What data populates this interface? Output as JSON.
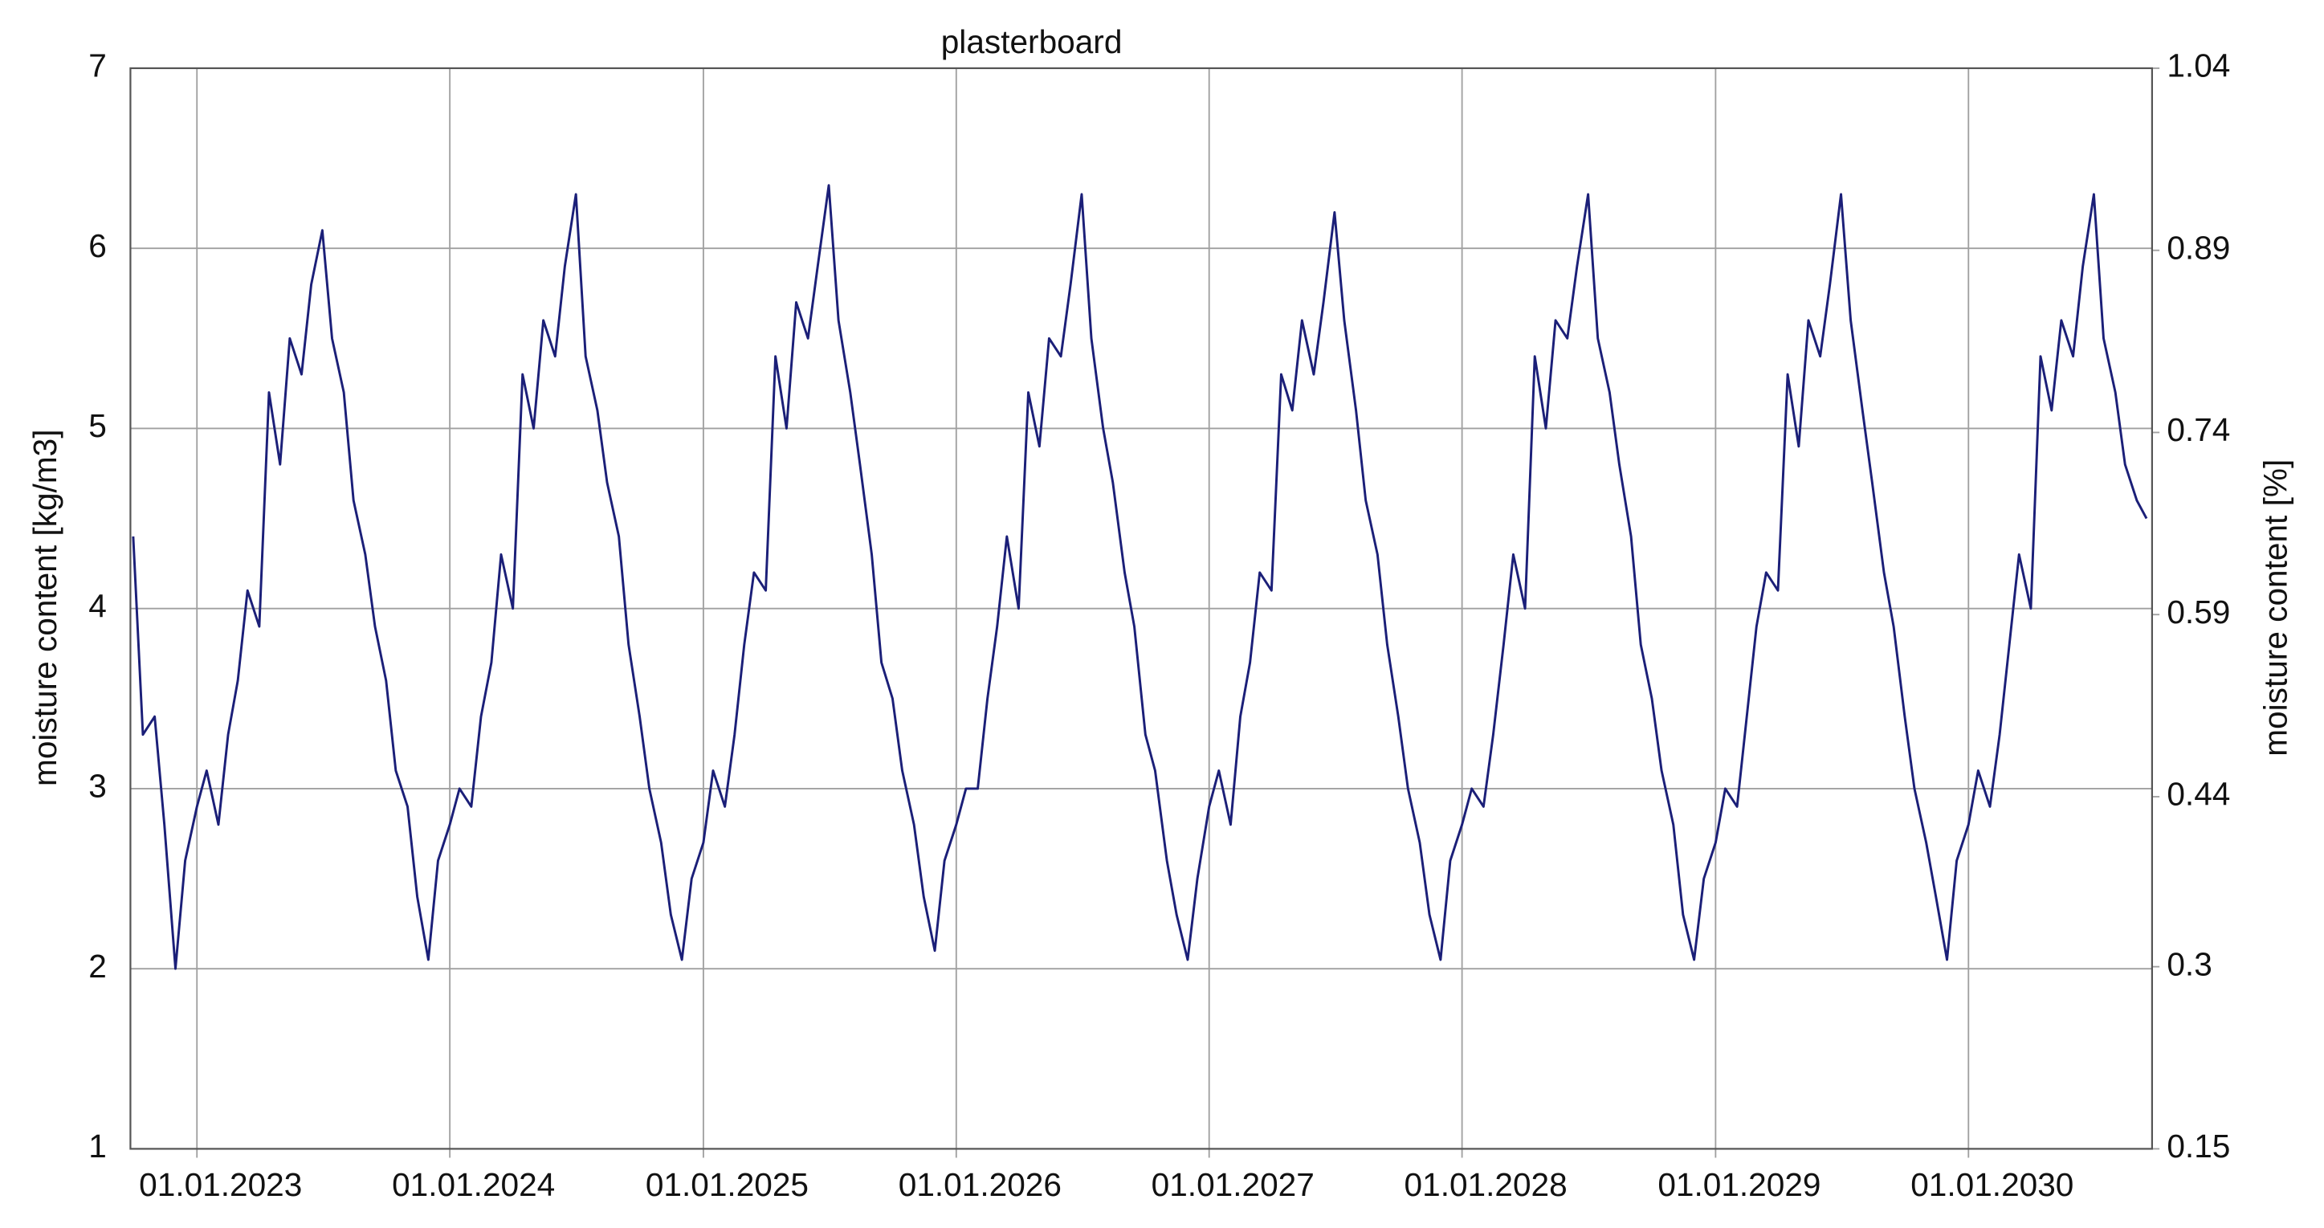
{
  "chart_data": {
    "type": "line",
    "title": "plasterboard",
    "y_label": "moisture content [kg/m3]",
    "y2_label": "moisture content [%]",
    "xlim": [
      "27.09.2022",
      "23.09.2030"
    ],
    "xticks": [
      "01.01.2023",
      "01.01.2024",
      "01.01.2025",
      "01.01.2026",
      "01.01.2027",
      "01.01.2028",
      "01.01.2029",
      "01.01.2030"
    ],
    "ylim": [
      1,
      7
    ],
    "yticks": [
      1,
      2,
      3,
      4,
      5,
      6,
      7
    ],
    "y2lim": [
      0.15,
      1.04
    ],
    "y2ticks": [
      0.15,
      0.3,
      0.44,
      0.59,
      0.74,
      0.89,
      1.04
    ],
    "grid": true,
    "x": [
      "01.10.2022",
      "15.10.2022",
      "01.11.2022",
      "15.11.2022",
      "01.12.2022",
      "15.12.2022",
      "01.01.2023",
      "15.01.2023",
      "01.02.2023",
      "15.02.2023",
      "01.03.2023",
      "15.03.2023",
      "01.04.2023",
      "15.04.2023",
      "01.05.2023",
      "15.05.2023",
      "01.06.2023",
      "15.06.2023",
      "01.07.2023",
      "15.07.2023",
      "01.08.2023",
      "15.08.2023",
      "01.09.2023",
      "15.09.2023",
      "01.10.2023",
      "15.10.2023",
      "01.11.2023",
      "15.11.2023",
      "01.12.2023",
      "15.12.2023",
      "01.01.2024",
      "15.01.2024",
      "01.02.2024",
      "15.02.2024",
      "01.03.2024",
      "15.03.2024",
      "01.04.2024",
      "15.04.2024",
      "01.05.2024",
      "15.05.2024",
      "01.06.2024",
      "15.06.2024",
      "01.07.2024",
      "15.07.2024",
      "01.08.2024",
      "15.08.2024",
      "01.09.2024",
      "15.09.2024",
      "01.10.2024",
      "15.10.2024",
      "01.11.2024",
      "15.11.2024",
      "01.12.2024",
      "15.12.2024",
      "01.01.2025",
      "15.01.2025",
      "01.02.2025",
      "15.02.2025",
      "01.03.2025",
      "15.03.2025",
      "01.04.2025",
      "15.04.2025",
      "01.05.2025",
      "15.05.2025",
      "01.06.2025",
      "15.06.2025",
      "01.07.2025",
      "15.07.2025",
      "01.08.2025",
      "15.08.2025",
      "01.09.2025",
      "15.09.2025",
      "01.10.2025",
      "15.10.2025",
      "01.11.2025",
      "15.11.2025",
      "01.12.2025",
      "15.12.2025",
      "01.01.2026",
      "15.01.2026",
      "01.02.2026",
      "15.02.2026",
      "01.03.2026",
      "15.03.2026",
      "01.04.2026",
      "15.04.2026",
      "01.05.2026",
      "15.05.2026",
      "01.06.2026",
      "15.06.2026",
      "01.07.2026",
      "15.07.2026",
      "01.08.2026",
      "15.08.2026",
      "01.09.2026",
      "15.09.2026",
      "01.10.2026",
      "15.10.2026",
      "01.11.2026",
      "15.11.2026",
      "01.12.2026",
      "15.12.2026",
      "01.01.2027",
      "15.01.2027",
      "01.02.2027",
      "15.02.2027",
      "01.03.2027",
      "15.03.2027",
      "01.04.2027",
      "15.04.2027",
      "01.05.2027",
      "15.05.2027",
      "01.06.2027",
      "15.06.2027",
      "01.07.2027",
      "15.07.2027",
      "01.08.2027",
      "15.08.2027",
      "01.09.2027",
      "15.09.2027",
      "01.10.2027",
      "15.10.2027",
      "01.11.2027",
      "15.11.2027",
      "01.12.2027",
      "15.12.2027",
      "01.01.2028",
      "15.01.2028",
      "01.02.2028",
      "15.02.2028",
      "01.03.2028",
      "15.03.2028",
      "01.04.2028",
      "15.04.2028",
      "01.05.2028",
      "15.05.2028",
      "01.06.2028",
      "15.06.2028",
      "01.07.2028",
      "15.07.2028",
      "01.08.2028",
      "15.08.2028",
      "01.09.2028",
      "15.09.2028",
      "01.10.2028",
      "15.10.2028",
      "01.11.2028",
      "15.11.2028",
      "01.12.2028",
      "15.12.2028",
      "01.01.2029",
      "15.01.2029",
      "01.02.2029",
      "15.02.2029",
      "01.03.2029",
      "15.03.2029",
      "01.04.2029",
      "15.04.2029",
      "01.05.2029",
      "15.05.2029",
      "01.06.2029",
      "15.06.2029",
      "01.07.2029",
      "15.07.2029",
      "01.08.2029",
      "15.08.2029",
      "01.09.2029",
      "15.09.2029",
      "01.10.2029",
      "15.10.2029",
      "01.11.2029",
      "15.11.2029",
      "01.12.2029",
      "15.12.2029",
      "01.01.2030",
      "15.01.2030",
      "01.02.2030",
      "15.02.2030",
      "01.03.2030",
      "15.03.2030",
      "01.04.2030",
      "15.04.2030",
      "01.05.2030",
      "15.05.2030",
      "01.06.2030",
      "15.06.2030",
      "01.07.2030",
      "15.07.2030",
      "01.08.2030",
      "15.08.2030",
      "01.09.2030",
      "15.09.2030"
    ],
    "series": [
      {
        "name": "plasterboard",
        "color": "#1b1f78",
        "values": [
          4.4,
          3.3,
          3.4,
          2.8,
          2.0,
          2.6,
          2.9,
          3.1,
          2.8,
          3.3,
          3.6,
          4.1,
          3.9,
          5.2,
          4.8,
          5.5,
          5.3,
          5.8,
          6.1,
          5.5,
          5.2,
          4.6,
          4.3,
          3.9,
          3.6,
          3.1,
          2.9,
          2.4,
          2.05,
          2.6,
          2.8,
          3.0,
          2.9,
          3.4,
          3.7,
          4.3,
          4.0,
          5.3,
          5.0,
          5.6,
          5.4,
          5.9,
          6.3,
          5.4,
          5.1,
          4.7,
          4.4,
          3.8,
          3.4,
          3.0,
          2.7,
          2.3,
          2.05,
          2.5,
          2.7,
          3.1,
          2.9,
          3.3,
          3.8,
          4.2,
          4.1,
          5.4,
          5.0,
          5.7,
          5.5,
          5.9,
          6.35,
          5.6,
          5.2,
          4.8,
          4.3,
          3.7,
          3.5,
          3.1,
          2.8,
          2.4,
          2.1,
          2.6,
          2.8,
          3.0,
          3.0,
          3.5,
          3.9,
          4.4,
          4.0,
          5.2,
          4.9,
          5.5,
          5.4,
          5.8,
          6.3,
          5.5,
          5.0,
          4.7,
          4.2,
          3.9,
          3.3,
          3.1,
          2.6,
          2.3,
          2.05,
          2.5,
          2.9,
          3.1,
          2.8,
          3.4,
          3.7,
          4.2,
          4.1,
          5.3,
          5.1,
          5.6,
          5.3,
          5.7,
          6.2,
          5.6,
          5.1,
          4.6,
          4.3,
          3.8,
          3.4,
          3.0,
          2.7,
          2.3,
          2.05,
          2.6,
          2.8,
          3.0,
          2.9,
          3.3,
          3.8,
          4.3,
          4.0,
          5.4,
          5.0,
          5.6,
          5.5,
          5.9,
          6.3,
          5.5,
          5.2,
          4.8,
          4.4,
          3.8,
          3.5,
          3.1,
          2.8,
          2.3,
          2.05,
          2.5,
          2.7,
          3.0,
          2.9,
          3.4,
          3.9,
          4.2,
          4.1,
          5.3,
          4.9,
          5.6,
          5.4,
          5.8,
          6.3,
          5.6,
          5.1,
          4.7,
          4.2,
          3.9,
          3.4,
          3.0,
          2.7,
          2.4,
          2.05,
          2.6,
          2.8,
          3.1,
          2.9,
          3.3,
          3.8,
          4.3,
          4.0,
          5.4,
          5.1,
          5.6,
          5.4,
          5.9,
          6.3,
          5.5,
          5.2,
          4.8,
          4.6,
          4.5
        ]
      }
    ]
  }
}
